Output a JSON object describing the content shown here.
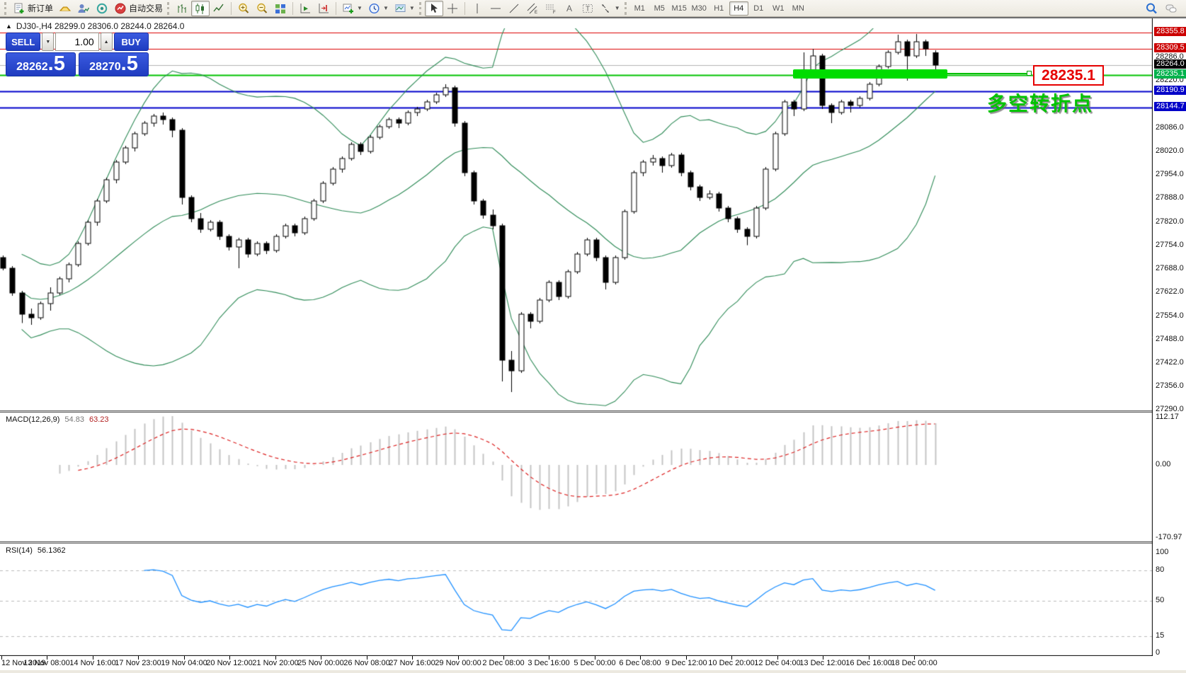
{
  "toolbar": {
    "new_order_label": "新订单",
    "autotrade_label": "自动交易",
    "timeframes": {
      "labels": [
        "M1",
        "M5",
        "M15",
        "M30",
        "H1",
        "H4",
        "D1",
        "W1",
        "MN"
      ],
      "active": "H4"
    }
  },
  "chart": {
    "symbol_line": "DJ30-,H4  28299.0 28306.0 28244.0 28264.0",
    "trade_panel": {
      "sell_label": "SELL",
      "buy_label": "BUY",
      "volume": "1.00",
      "sell_price_main": "28262",
      "sell_price_frac": ".5",
      "buy_price_main": "28270",
      "buy_price_frac": ".5"
    },
    "price_axis": {
      "gridline_labels": [
        "28286.0",
        "28220.0",
        "28086.0",
        "28020.0",
        "27954.0",
        "27888.0",
        "27820.0",
        "27754.0",
        "27688.0",
        "27622.0",
        "27554.0",
        "27488.0",
        "27422.0",
        "27356.0",
        "27290.0"
      ],
      "badges": [
        {
          "text": "28355.8",
          "price": 28355.8,
          "bg": "#cc0000",
          "fg": "#ffffff"
        },
        {
          "text": "28309.5",
          "price": 28309.5,
          "bg": "#cc0000",
          "fg": "#ffffff"
        },
        {
          "text": "28264.0",
          "price": 28264.0,
          "bg": "#000000",
          "fg": "#ffffff"
        },
        {
          "text": "28235.1",
          "price": 28235.1,
          "bg": "#00b24c",
          "fg": "#ffffff"
        },
        {
          "text": "28190.9",
          "price": 28190.9,
          "bg": "#0000c8",
          "fg": "#ffffff"
        },
        {
          "text": "28144.7",
          "price": 28144.7,
          "bg": "#0000c8",
          "fg": "#ffffff"
        }
      ]
    },
    "hlines": [
      {
        "price": 28355.8,
        "color": "#dd0000",
        "width": 1
      },
      {
        "price": 28309.5,
        "color": "#dd0000",
        "width": 1
      },
      {
        "price": 28264.0,
        "color": "#b4b4b4",
        "width": 1
      },
      {
        "price": 28235.1,
        "color": "#00c400",
        "width": 2
      },
      {
        "price": 28190.9,
        "color": "#0000cc",
        "width": 2
      },
      {
        "price": 28144.7,
        "color": "#0000cc",
        "width": 2
      }
    ],
    "time_axis": [
      "12 Nov 2019",
      "13 Nov 08:00",
      "14 Nov 16:00",
      "17 Nov 23:00",
      "19 Nov 04:00",
      "20 Nov 12:00",
      "21 Nov 20:00",
      "25 Nov 00:00",
      "26 Nov 08:00",
      "27 Nov 16:00",
      "29 Nov 00:00",
      "2 Dec 08:00",
      "3 Dec 16:00",
      "5 Dec 00:00",
      "6 Dec 08:00",
      "9 Dec 12:00",
      "10 Dec 20:00",
      "12 Dec 04:00",
      "13 Dec 12:00",
      "16 Dec 16:00",
      "18 Dec 00:00"
    ],
    "candles": [
      [
        27720,
        27726,
        27684,
        27690
      ],
      [
        27690,
        27696,
        27612,
        27620
      ],
      [
        27620,
        27626,
        27535,
        27560
      ],
      [
        27560,
        27576,
        27530,
        27550
      ],
      [
        27550,
        27596,
        27544,
        27590
      ],
      [
        27590,
        27636,
        27570,
        27620
      ],
      [
        27620,
        27666,
        27614,
        27660
      ],
      [
        27660,
        27706,
        27650,
        27700
      ],
      [
        27700,
        27766,
        27694,
        27760
      ],
      [
        27760,
        27826,
        27754,
        27820
      ],
      [
        27820,
        27886,
        27810,
        27880
      ],
      [
        27880,
        27946,
        27874,
        27940
      ],
      [
        27940,
        27996,
        27930,
        27990
      ],
      [
        27990,
        28036,
        27984,
        28030
      ],
      [
        28030,
        28076,
        28020,
        28070
      ],
      [
        28070,
        28106,
        28064,
        28100
      ],
      [
        28100,
        28126,
        28090,
        28120
      ],
      [
        28120,
        28130,
        28096,
        28110
      ],
      [
        28110,
        28116,
        28060,
        28080
      ],
      [
        28080,
        28086,
        27870,
        27890
      ],
      [
        27890,
        27896,
        27820,
        27830
      ],
      [
        27830,
        27846,
        27790,
        27800
      ],
      [
        27800,
        27826,
        27794,
        27820
      ],
      [
        27820,
        27826,
        27770,
        27780
      ],
      [
        27780,
        27786,
        27740,
        27750
      ],
      [
        27750,
        27776,
        27690,
        27770
      ],
      [
        27770,
        27776,
        27720,
        27730
      ],
      [
        27730,
        27766,
        27724,
        27760
      ],
      [
        27760,
        27766,
        27730,
        27740
      ],
      [
        27740,
        27786,
        27734,
        27780
      ],
      [
        27780,
        27816,
        27774,
        27810
      ],
      [
        27810,
        27816,
        27780,
        27790
      ],
      [
        27790,
        27836,
        27784,
        27830
      ],
      [
        27830,
        27886,
        27824,
        27880
      ],
      [
        27880,
        27936,
        27874,
        27930
      ],
      [
        27930,
        27976,
        27924,
        27970
      ],
      [
        27970,
        28006,
        27960,
        28000
      ],
      [
        28000,
        28046,
        27994,
        28040
      ],
      [
        28040,
        28046,
        28010,
        28020
      ],
      [
        28020,
        28066,
        28014,
        28060
      ],
      [
        28060,
        28096,
        28054,
        28090
      ],
      [
        28090,
        28116,
        28084,
        28110
      ],
      [
        28110,
        28116,
        28086,
        28100
      ],
      [
        28100,
        28136,
        28094,
        28130
      ],
      [
        28130,
        28146,
        28120,
        28140
      ],
      [
        28140,
        28166,
        28134,
        28160
      ],
      [
        28160,
        28186,
        28154,
        28180
      ],
      [
        28180,
        28210,
        28174,
        28200
      ],
      [
        28200,
        28206,
        28090,
        28100
      ],
      [
        28100,
        28106,
        27950,
        27960
      ],
      [
        27960,
        27966,
        27870,
        27880
      ],
      [
        27880,
        27886,
        27830,
        27840
      ],
      [
        27840,
        27856,
        27800,
        27810
      ],
      [
        27810,
        27816,
        27370,
        27430
      ],
      [
        27430,
        27456,
        27340,
        27400
      ],
      [
        27400,
        27566,
        27394,
        27560
      ],
      [
        27560,
        27566,
        27520,
        27540
      ],
      [
        27540,
        27606,
        27534,
        27600
      ],
      [
        27600,
        27656,
        27594,
        27650
      ],
      [
        27650,
        27656,
        27600,
        27610
      ],
      [
        27610,
        27686,
        27604,
        27680
      ],
      [
        27680,
        27736,
        27674,
        27730
      ],
      [
        27730,
        27776,
        27724,
        27770
      ],
      [
        27770,
        27776,
        27710,
        27720
      ],
      [
        27720,
        27726,
        27630,
        27650
      ],
      [
        27650,
        27726,
        27644,
        27720
      ],
      [
        27720,
        27856,
        27714,
        27850
      ],
      [
        27850,
        27966,
        27844,
        27960
      ],
      [
        27960,
        27996,
        27950,
        27990
      ],
      [
        27990,
        28010,
        27980,
        28000
      ],
      [
        28000,
        28006,
        27960,
        27980
      ],
      [
        27980,
        28016,
        27974,
        28010
      ],
      [
        28010,
        28016,
        27950,
        27960
      ],
      [
        27960,
        27966,
        27910,
        27920
      ],
      [
        27920,
        27926,
        27880,
        27890
      ],
      [
        27890,
        27910,
        27884,
        27900
      ],
      [
        27900,
        27906,
        27850,
        27860
      ],
      [
        27860,
        27866,
        27820,
        27830
      ],
      [
        27830,
        27836,
        27790,
        27800
      ],
      [
        27800,
        27806,
        27755,
        27780
      ],
      [
        27780,
        27866,
        27774,
        27860
      ],
      [
        27860,
        27976,
        27854,
        27970
      ],
      [
        27970,
        28076,
        27964,
        28070
      ],
      [
        28070,
        28166,
        28064,
        28160
      ],
      [
        28160,
        28166,
        28120,
        28140
      ],
      [
        28140,
        28300,
        28134,
        28250
      ],
      [
        28250,
        28310,
        28244,
        28290
      ],
      [
        28290,
        28296,
        28140,
        28150
      ],
      [
        28150,
        28156,
        28100,
        28130
      ],
      [
        28130,
        28166,
        28124,
        28160
      ],
      [
        28160,
        28166,
        28130,
        28150
      ],
      [
        28150,
        28176,
        28144,
        28170
      ],
      [
        28170,
        28216,
        28164,
        28210
      ],
      [
        28210,
        28266,
        28204,
        28260
      ],
      [
        28260,
        28306,
        28254,
        28300
      ],
      [
        28300,
        28350,
        28294,
        28330
      ],
      [
        28330,
        28336,
        28220,
        28290
      ],
      [
        28290,
        28352,
        28284,
        28330
      ],
      [
        28330,
        28336,
        28290,
        28310
      ],
      [
        28299,
        28306,
        28244,
        28264
      ]
    ],
    "bollinger": {
      "period": 20,
      "deviation": 2,
      "color": "#2e8b57"
    }
  },
  "annotation": {
    "price": "28235.1",
    "text": "多空转折点"
  },
  "macd": {
    "name": "MACD(12,26,9)",
    "value_main": "54.83",
    "value_signal": "63.23",
    "fast": 12,
    "slow": 26,
    "signal": 9,
    "scale": [
      "112.17",
      "0.00",
      "-170.97"
    ],
    "hist_color": "#c4c4c4",
    "signal_color": "#dd2222"
  },
  "rsi": {
    "name": "RSI(14)",
    "value": "56.1362",
    "period": 14,
    "scale": [
      "100",
      "80",
      "50",
      "15",
      "0"
    ],
    "dashed_levels": [
      80,
      50,
      15
    ],
    "line_color": "#1e90ff"
  },
  "colors": {
    "band": "#2e8b57",
    "bull": "#ffffff",
    "bear": "#000000",
    "wick": "#000000",
    "accent_blue": "#1f3cc0"
  }
}
